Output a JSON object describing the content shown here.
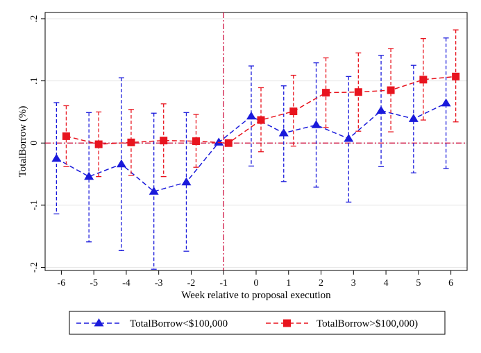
{
  "chart_data": {
    "type": "line",
    "xlabel": "Week relative to proposal execution",
    "ylabel": "TotalBorrow (%)",
    "x": [
      -6,
      -5,
      -4,
      -3,
      -2,
      -1,
      0,
      1,
      2,
      3,
      4,
      5,
      6
    ],
    "xlim": [
      -6.5,
      6.5
    ],
    "ylim": [
      -0.205,
      0.21
    ],
    "x_ticks": [
      -6,
      -5,
      -4,
      -3,
      -2,
      -1,
      0,
      1,
      2,
      3,
      4,
      5,
      6
    ],
    "x_tick_labels": [
      "-6",
      "-5",
      "-4",
      "-3",
      "-2",
      "-1",
      "0",
      "1",
      "2",
      "3",
      "4",
      "5",
      "6"
    ],
    "y_ticks": [
      -0.2,
      -0.1,
      0,
      0.1,
      0.2
    ],
    "y_tick_labels": [
      "-.2",
      "-.1",
      "0",
      ".1",
      ".2"
    ],
    "grid": "horizontal",
    "reference_lines": {
      "vertical_x": -1,
      "horizontal_y": 0,
      "color": "#cc0033"
    },
    "legend_position": "bottom",
    "series": [
      {
        "name": "TotalBorrow<$100,000",
        "color": "#1a1adb",
        "marker": "triangle",
        "x_offset": -0.15,
        "values": [
          -0.025,
          -0.054,
          -0.034,
          -0.078,
          -0.063,
          0.001,
          0.043,
          0.016,
          0.029,
          0.007,
          0.052,
          0.039,
          0.064
        ],
        "ci_low": [
          -0.114,
          -0.159,
          -0.173,
          -0.203,
          -0.174,
          null,
          -0.037,
          -0.062,
          -0.071,
          -0.095,
          -0.038,
          -0.048,
          -0.041
        ],
        "ci_high": [
          0.065,
          0.049,
          0.105,
          0.048,
          0.049,
          null,
          0.124,
          0.092,
          0.129,
          0.107,
          0.141,
          0.125,
          0.169
        ]
      },
      {
        "name": "TotalBorrow>$100,000)",
        "color": "#e8141e",
        "marker": "square",
        "x_offset": 0.15,
        "values": [
          0.011,
          -0.002,
          0.001,
          0.004,
          0.003,
          0.0,
          0.037,
          0.051,
          0.081,
          0.082,
          0.085,
          0.102,
          0.107
        ],
        "ci_low": [
          -0.038,
          -0.054,
          -0.052,
          -0.054,
          -0.039,
          null,
          -0.014,
          -0.005,
          0.025,
          0.019,
          0.018,
          0.037,
          0.034
        ],
        "ci_high": [
          0.06,
          0.05,
          0.054,
          0.063,
          0.046,
          null,
          0.089,
          0.109,
          0.137,
          0.145,
          0.152,
          0.168,
          0.182
        ]
      }
    ]
  }
}
